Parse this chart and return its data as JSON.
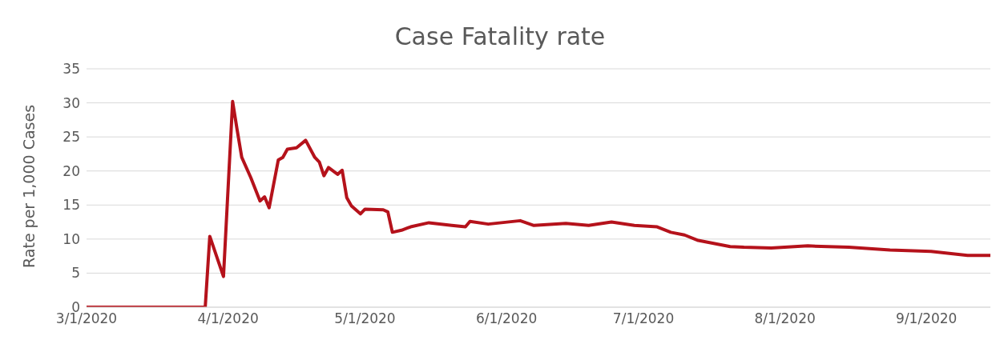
{
  "chart_data": {
    "type": "line",
    "title": "Case Fatality rate",
    "ylabel": "Rate per 1,000 Cases",
    "x": [
      "2020-03-01",
      "2020-03-27",
      "2020-03-28",
      "2020-03-31",
      "2020-04-02",
      "2020-04-03",
      "2020-04-04",
      "2020-04-06",
      "2020-04-08",
      "2020-04-09",
      "2020-04-10",
      "2020-04-12",
      "2020-04-13",
      "2020-04-14",
      "2020-04-16",
      "2020-04-18",
      "2020-04-20",
      "2020-04-21",
      "2020-04-22",
      "2020-04-23",
      "2020-04-25",
      "2020-04-26",
      "2020-04-27",
      "2020-04-28",
      "2020-04-30",
      "2020-05-01",
      "2020-05-05",
      "2020-05-06",
      "2020-05-07",
      "2020-05-09",
      "2020-05-11",
      "2020-05-15",
      "2020-05-20",
      "2020-05-23",
      "2020-05-24",
      "2020-05-28",
      "2020-06-04",
      "2020-06-07",
      "2020-06-14",
      "2020-06-19",
      "2020-06-24",
      "2020-06-29",
      "2020-07-04",
      "2020-07-07",
      "2020-07-10",
      "2020-07-13",
      "2020-07-20",
      "2020-07-23",
      "2020-07-29",
      "2020-08-06",
      "2020-08-15",
      "2020-08-24",
      "2020-09-02",
      "2020-09-10",
      "2020-09-15"
    ],
    "series": [
      {
        "color": "#b5121b",
        "values": [
          0,
          0,
          10.4,
          4.5,
          30.2,
          26,
          22,
          19,
          15.6,
          16.2,
          14.6,
          21.6,
          22,
          23.2,
          23.4,
          24.5,
          22,
          21.3,
          19.3,
          20.5,
          19.5,
          20.1,
          16.1,
          14.9,
          13.7,
          14.4,
          14.3,
          14,
          11,
          11.3,
          11.8,
          12.4,
          12,
          11.8,
          12.6,
          12.2,
          12.7,
          12,
          12.3,
          12,
          12.5,
          12,
          11.8,
          11,
          10.6,
          9.8,
          8.9,
          8.8,
          8.7,
          9,
          8.8,
          8.4,
          8.2,
          7.6,
          7.6
        ]
      }
    ],
    "xlim": [
      "2020-03-01",
      "2020-09-15"
    ],
    "xticks": [
      {
        "value": "2020-03-01",
        "label": "3/1/2020"
      },
      {
        "value": "2020-04-01",
        "label": "4/1/2020"
      },
      {
        "value": "2020-05-01",
        "label": "5/1/2020"
      },
      {
        "value": "2020-06-01",
        "label": "6/1/2020"
      },
      {
        "value": "2020-07-01",
        "label": "7/1/2020"
      },
      {
        "value": "2020-08-01",
        "label": "8/1/2020"
      },
      {
        "value": "2020-09-01",
        "label": "9/1/2020"
      }
    ],
    "ylim": [
      0,
      35
    ],
    "yticks": [
      0,
      5,
      10,
      15,
      20,
      25,
      30,
      35
    ],
    "grid": "y",
    "line_style": "solid"
  }
}
